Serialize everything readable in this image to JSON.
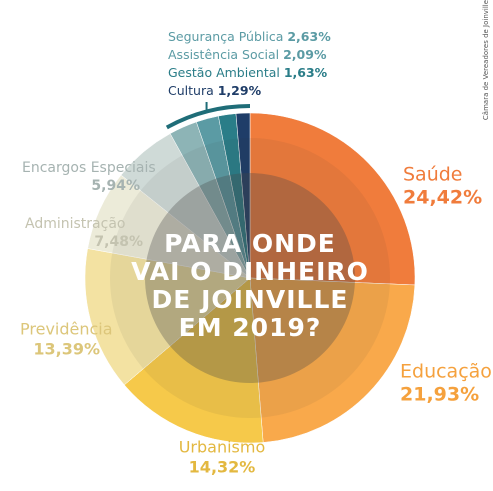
{
  "chart_data": {
    "type": "pie",
    "title": [
      "PARA ONDE",
      "VAI O DINHEIRO",
      "DE JOINVILLE",
      "EM 2019?"
    ],
    "source": "Câmara de Vereadores de Joinville",
    "categories": [
      "Saúde",
      "Educação",
      "Urbanismo",
      "Previdência",
      "Administração",
      "Encargos Especiais",
      "Segurança Pública",
      "Assistência Social",
      "Gestão Ambiental",
      "Cultura"
    ],
    "values": [
      24.42,
      21.93,
      14.32,
      13.39,
      7.48,
      5.94,
      2.63,
      2.09,
      1.63,
      1.29
    ],
    "value_labels": [
      "24,42%",
      "21,93%",
      "14,32%",
      "13,39%",
      "7,48%",
      "5,94%",
      "2,63%",
      "2,09%",
      "1,63%",
      "1,29%"
    ],
    "colors": [
      "#f07c3c",
      "#f9a94b",
      "#f6c94a",
      "#f3e2a2",
      "#ecebd9",
      "#cfdad7",
      "#8db4b6",
      "#5b9ba4",
      "#2a7d88",
      "#1f3d68"
    ]
  }
}
